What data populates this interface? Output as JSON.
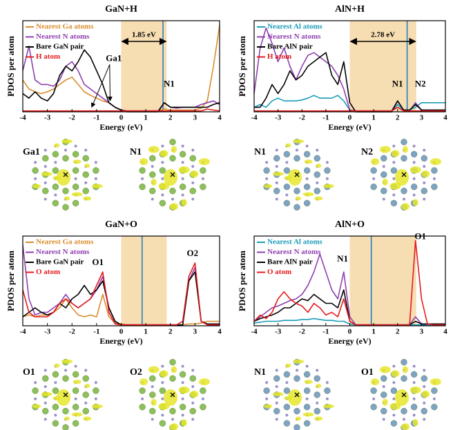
{
  "chart_data": [
    {
      "type": "line",
      "title": "GaN+H",
      "x_label": "Energy (eV)",
      "y_label": "PDOS per atom",
      "xlim": [
        -4,
        4
      ],
      "ylim": [
        0,
        1
      ],
      "xticks": [
        -4,
        -3,
        -2,
        -1,
        0,
        1,
        2,
        3,
        4
      ],
      "legend": "upper left",
      "band": [
        0,
        1.85
      ],
      "band_color": "#f6ddb2",
      "marker_line": 1.7,
      "marker_color": "#1a78c2",
      "gap_label": "1.85 eV",
      "annotations": [
        "Ga1",
        "N1"
      ],
      "structure_labels": [
        "Ga1",
        "N1"
      ],
      "x": [
        -4,
        -3.75,
        -3.5,
        -3.25,
        -3,
        -2.75,
        -2.5,
        -2.25,
        -2,
        -1.75,
        -1.5,
        -1.25,
        -1,
        -0.75,
        -0.5,
        -0.25,
        0,
        0.25,
        0.5,
        0.75,
        1,
        1.25,
        1.5,
        1.75,
        2,
        2.25,
        2.5,
        2.75,
        3,
        3.25,
        3.5,
        3.75,
        4
      ],
      "series": [
        {
          "name": "Nearest Ga atoms",
          "color": "#d98c2b",
          "values": [
            0.35,
            0.25,
            0.22,
            0.2,
            0.22,
            0.25,
            0.3,
            0.35,
            0.38,
            0.3,
            0.22,
            0.18,
            0.15,
            0.12,
            0.1,
            0.05,
            0.02,
            0.01,
            0.01,
            0.01,
            0.01,
            0.01,
            0.01,
            0.03,
            0.02,
            0.02,
            0.02,
            0.02,
            0.02,
            0.04,
            0.12,
            0.5,
            0.95
          ]
        },
        {
          "name": "Nearest N atoms",
          "color": "#8e3fb0",
          "values": [
            0.45,
            0.72,
            0.35,
            0.3,
            0.3,
            0.28,
            0.35,
            0.5,
            0.55,
            0.45,
            0.3,
            0.25,
            0.2,
            0.15,
            0.1,
            0.05,
            0.02,
            0.01,
            0.01,
            0.01,
            0.01,
            0.01,
            0.01,
            0.1,
            0.05,
            0.04,
            0.05,
            0.05,
            0.05,
            0.08,
            0.1,
            0.12,
            0.08
          ]
        },
        {
          "name": "Bare GaN pair",
          "color": "#000000",
          "values": [
            0.2,
            0.15,
            0.22,
            0.15,
            0.12,
            0.2,
            0.4,
            0.5,
            0.45,
            0.55,
            0.68,
            0.6,
            0.45,
            0.3,
            0.1,
            0.05,
            0.02,
            0,
            0,
            0,
            0,
            0,
            0,
            0.1,
            0.05,
            0.05,
            0.05,
            0.05,
            0.05,
            0.05,
            0.05,
            0.08,
            0.1
          ]
        },
        {
          "name": "H atom",
          "color": "#e41a1c",
          "values": [
            0.01,
            0.01,
            0.01,
            0.01,
            0.01,
            0.01,
            0.01,
            0.01,
            0.01,
            0.01,
            0.01,
            0.01,
            0.01,
            0.01,
            0.01,
            0.01,
            0.01,
            0.01,
            0.01,
            0.01,
            0.01,
            0.01,
            0.01,
            0.01,
            0.01,
            0.01,
            0.01,
            0.01,
            0.01,
            0.01,
            0.03,
            0.02,
            0.01
          ]
        }
      ]
    },
    {
      "type": "line",
      "title": "AlN+H",
      "x_label": "Energy (eV)",
      "y_label": "PDOS per atom",
      "xlim": [
        -4,
        4
      ],
      "ylim": [
        0,
        1
      ],
      "xticks": [
        -4,
        -3,
        -2,
        -1,
        0,
        1,
        2,
        3,
        4
      ],
      "legend": "upper left",
      "band": [
        0,
        2.78
      ],
      "band_color": "#f6ddb2",
      "marker_line": 2.4,
      "marker_color": "#1a78c2",
      "gap_label": "2.78 eV",
      "annotations": [
        "N1",
        "N2"
      ],
      "structure_labels": [
        "N1",
        "N2"
      ],
      "x": [
        -4,
        -3.75,
        -3.5,
        -3.25,
        -3,
        -2.75,
        -2.5,
        -2.25,
        -2,
        -1.75,
        -1.5,
        -1.25,
        -1,
        -0.75,
        -0.5,
        -0.25,
        0,
        0.25,
        0.5,
        0.75,
        1,
        1.25,
        1.5,
        1.75,
        2,
        2.25,
        2.5,
        2.75,
        3,
        3.25,
        3.5,
        3.75,
        4
      ],
      "series": [
        {
          "name": "Nearest Al atoms",
          "color": "#1a9cb8",
          "values": [
            0.05,
            0.08,
            0.05,
            0.12,
            0.15,
            0.12,
            0.12,
            0.12,
            0.13,
            0.15,
            0.18,
            0.15,
            0.15,
            0.15,
            0.18,
            0.12,
            0.02,
            0,
            0,
            0,
            0,
            0,
            0,
            0,
            0.08,
            0.02,
            0.02,
            0.05,
            0.1,
            0.1,
            0.1,
            0.1,
            0.1
          ]
        },
        {
          "name": "Nearest N atoms",
          "color": "#8e3fb0",
          "values": [
            0.2,
            0.7,
            0.92,
            0.75,
            0.55,
            0.7,
            0.5,
            0.35,
            0.5,
            0.62,
            0.65,
            0.6,
            0.55,
            0.5,
            0.4,
            0.25,
            0.02,
            0.01,
            0.01,
            0.01,
            0.01,
            0.01,
            0.01,
            0.01,
            0.12,
            0.02,
            0.01,
            0.1,
            0.02,
            0.02,
            0.02,
            0.02,
            0.02
          ]
        },
        {
          "name": "Bare AlN pair",
          "color": "#000000",
          "values": [
            0.05,
            0.05,
            0.15,
            0.3,
            0.2,
            0.3,
            0.45,
            0.35,
            0.4,
            0.5,
            0.55,
            0.6,
            0.65,
            0.4,
            0.3,
            0.55,
            0.1,
            0,
            0,
            0,
            0,
            0,
            0,
            0,
            0.12,
            0.02,
            0.02,
            0.08,
            0.02,
            0.02,
            0.02,
            0.02,
            0.02
          ]
        },
        {
          "name": "H atom",
          "color": "#e41a1c",
          "values": [
            0.01,
            0.01,
            0.01,
            0.01,
            0.01,
            0.01,
            0.01,
            0.01,
            0.01,
            0.01,
            0.01,
            0.01,
            0.01,
            0.01,
            0.01,
            0.01,
            0.01,
            0.01,
            0.01,
            0.01,
            0.01,
            0.01,
            0.01,
            0.01,
            0.05,
            0.01,
            0.01,
            0.01,
            0.01,
            0.01,
            0.01,
            0.01,
            0.01
          ]
        }
      ]
    },
    {
      "type": "line",
      "title": "GaN+O",
      "x_label": "Energy (eV)",
      "y_label": "PDOS per atom",
      "xlim": [
        -4,
        4
      ],
      "ylim": [
        0,
        1
      ],
      "xticks": [
        -4,
        -3,
        -2,
        -1,
        0,
        1,
        2,
        3,
        4
      ],
      "legend": "upper left",
      "band": [
        0,
        1.85
      ],
      "band_color": "#f6ddb2",
      "marker_line": 0.85,
      "marker_color": "#1a78c2",
      "annotations": [
        "O1",
        "O2"
      ],
      "structure_labels": [
        "O1",
        "O2"
      ],
      "x": [
        -4,
        -3.75,
        -3.5,
        -3.25,
        -3,
        -2.75,
        -2.5,
        -2.25,
        -2,
        -1.75,
        -1.5,
        -1.25,
        -1,
        -0.75,
        -0.5,
        -0.25,
        0,
        0.25,
        0.5,
        0.75,
        1,
        1.25,
        1.5,
        1.75,
        2,
        2.25,
        2.5,
        2.75,
        3,
        3.25,
        3.5,
        3.75,
        4
      ],
      "series": [
        {
          "name": "Nearest Ga atoms",
          "color": "#d98c2b",
          "values": [
            0.1,
            0.12,
            0.1,
            0.12,
            0.12,
            0.15,
            0.2,
            0.3,
            0.2,
            0.12,
            0.1,
            0.12,
            0.1,
            0.35,
            0.1,
            0.03,
            0.02,
            0.01,
            0.01,
            0.01,
            0.01,
            0.01,
            0.01,
            0.01,
            0.01,
            0.01,
            0.01,
            0.02,
            0.02,
            0.03,
            0.05,
            0.05,
            0.05
          ]
        },
        {
          "name": "Nearest N atoms",
          "color": "#8e3fb0",
          "values": [
            0.9,
            0.3,
            0.12,
            0.15,
            0.15,
            0.2,
            0.25,
            0.35,
            0.25,
            0.2,
            0.25,
            0.3,
            0.4,
            0.55,
            0.2,
            0.05,
            0.01,
            0.01,
            0.01,
            0.01,
            0.01,
            0.01,
            0.01,
            0.01,
            0.01,
            0.01,
            0.01,
            0.5,
            0.65,
            0.05,
            0.02,
            0.02,
            0.02
          ]
        },
        {
          "name": "Bare GaN pair",
          "color": "#000000",
          "values": [
            0.1,
            0.15,
            0.2,
            0.15,
            0.12,
            0.15,
            0.25,
            0.2,
            0.3,
            0.35,
            0.45,
            0.35,
            0.4,
            0.5,
            0.2,
            0.05,
            0.01,
            0.01,
            0.01,
            0.01,
            0.01,
            0.01,
            0.01,
            0.01,
            0.01,
            0.01,
            0.01,
            0.5,
            0.6,
            0.05,
            0.02,
            0.02,
            0.02
          ]
        },
        {
          "name": "O atom",
          "color": "#e41a1c",
          "values": [
            0.4,
            0.15,
            0.1,
            0.1,
            0.1,
            0.15,
            0.25,
            0.3,
            0.25,
            0.2,
            0.25,
            0.3,
            0.45,
            0.6,
            0.15,
            0.02,
            0.01,
            0.01,
            0.01,
            0.01,
            0.01,
            0.01,
            0.01,
            0.01,
            0.01,
            0.01,
            0.05,
            0.55,
            0.7,
            0.05,
            0.01,
            0.01,
            0.01
          ]
        }
      ]
    },
    {
      "type": "line",
      "title": "AlN+O",
      "x_label": "Energy (eV)",
      "y_label": "PDOS per atom",
      "xlim": [
        -4,
        4
      ],
      "ylim": [
        0,
        1
      ],
      "xticks": [
        -4,
        -3,
        -2,
        -1,
        0,
        1,
        2,
        3,
        4
      ],
      "legend": "upper left",
      "band": [
        0,
        2.78
      ],
      "band_color": "#f6ddb2",
      "marker_line": 0.9,
      "marker_color": "#1a78c2",
      "annotations": [
        "N1",
        "O1"
      ],
      "structure_labels": [
        "N1",
        "O1"
      ],
      "x": [
        -4,
        -3.75,
        -3.5,
        -3.25,
        -3,
        -2.75,
        -2.5,
        -2.25,
        -2,
        -1.75,
        -1.5,
        -1.25,
        -1,
        -0.75,
        -0.5,
        -0.25,
        0,
        0.25,
        0.5,
        0.75,
        1,
        1.25,
        1.5,
        1.75,
        2,
        2.25,
        2.5,
        2.75,
        3,
        3.25,
        3.5,
        3.75,
        4
      ],
      "series": [
        {
          "name": "Nearest Al atoms",
          "color": "#1a9cb8",
          "values": [
            0.03,
            0.04,
            0.05,
            0.05,
            0.05,
            0.06,
            0.06,
            0.06,
            0.07,
            0.07,
            0.08,
            0.07,
            0.06,
            0.06,
            0.05,
            0.05,
            0.02,
            0.01,
            0.01,
            0.01,
            0.01,
            0.01,
            0.01,
            0.01,
            0.01,
            0.01,
            0.01,
            0.01,
            0.01,
            0.01,
            0.01,
            0.01,
            0.01
          ]
        },
        {
          "name": "Nearest N atoms",
          "color": "#8e3fb0",
          "values": [
            0.05,
            0.1,
            0.15,
            0.2,
            0.22,
            0.25,
            0.28,
            0.3,
            0.35,
            0.45,
            0.6,
            0.8,
            0.6,
            0.4,
            0.3,
            0.6,
            0.1,
            0.01,
            0.01,
            0.01,
            0.01,
            0.01,
            0.01,
            0.01,
            0.01,
            0.01,
            0.01,
            0.1,
            0.02,
            0.02,
            0.02,
            0.02,
            0.02
          ]
        },
        {
          "name": "Bare AlN pair",
          "color": "#000000",
          "values": [
            0.05,
            0.08,
            0.1,
            0.12,
            0.15,
            0.2,
            0.2,
            0.25,
            0.3,
            0.28,
            0.35,
            0.3,
            0.25,
            0.25,
            0.2,
            0.4,
            0.05,
            0.01,
            0.01,
            0.01,
            0.01,
            0.01,
            0.01,
            0.01,
            0.01,
            0.01,
            0.01,
            0.05,
            0.02,
            0.02,
            0.02,
            0.02,
            0.02
          ]
        },
        {
          "name": "O atom",
          "color": "#e41a1c",
          "values": [
            0.05,
            0.12,
            0.08,
            0.15,
            0.3,
            0.38,
            0.3,
            0.25,
            0.22,
            0.15,
            0.25,
            0.2,
            0.12,
            0.15,
            0.1,
            0.3,
            0.05,
            0.01,
            0.01,
            0.01,
            0.01,
            0.01,
            0.01,
            0.01,
            0.01,
            0.01,
            0.01,
            0.95,
            0.3,
            0.02,
            0.01,
            0.01,
            0.01
          ]
        }
      ]
    }
  ]
}
